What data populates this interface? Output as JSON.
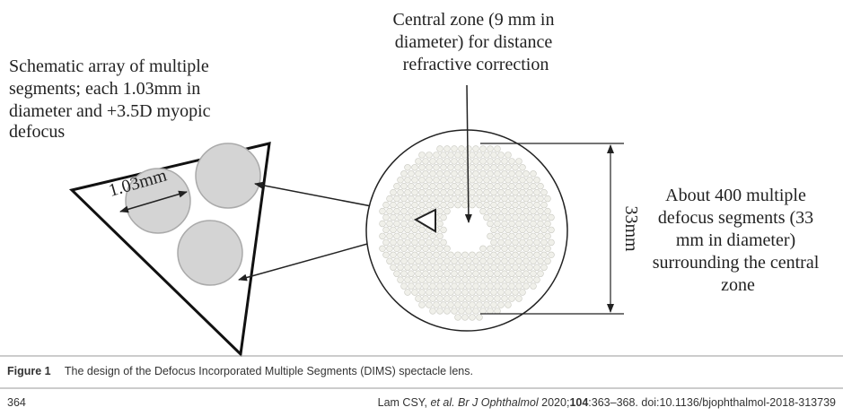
{
  "figure": {
    "annotations": {
      "central_zone": [
        "Central zone (9 mm in",
        "diameter) for distance",
        "refractive correction"
      ],
      "segments_array": [
        "Schematic array of multiple",
        "segments; each 1.03mm in",
        "diameter and +3.5D myopic",
        "defocus"
      ],
      "segment_size": "1.03mm",
      "lens_diameter": "33mm",
      "segment_count": [
        "About 400 multiple",
        "defocus segments (33",
        "mm in diameter)",
        "surrounding the central",
        "zone"
      ]
    },
    "caption": {
      "label": "Figure 1",
      "text": "The design of the Defocus Incorporated Multiple Segments (DIMS) spectacle lens."
    }
  },
  "footer": {
    "page": "364",
    "citation": [
      "Lam CSY, ",
      "et al. Br J Ophthalmol",
      " 2020;",
      "104",
      ":363–368. doi:10.1136/bjophthalmol-2018-313739"
    ]
  }
}
